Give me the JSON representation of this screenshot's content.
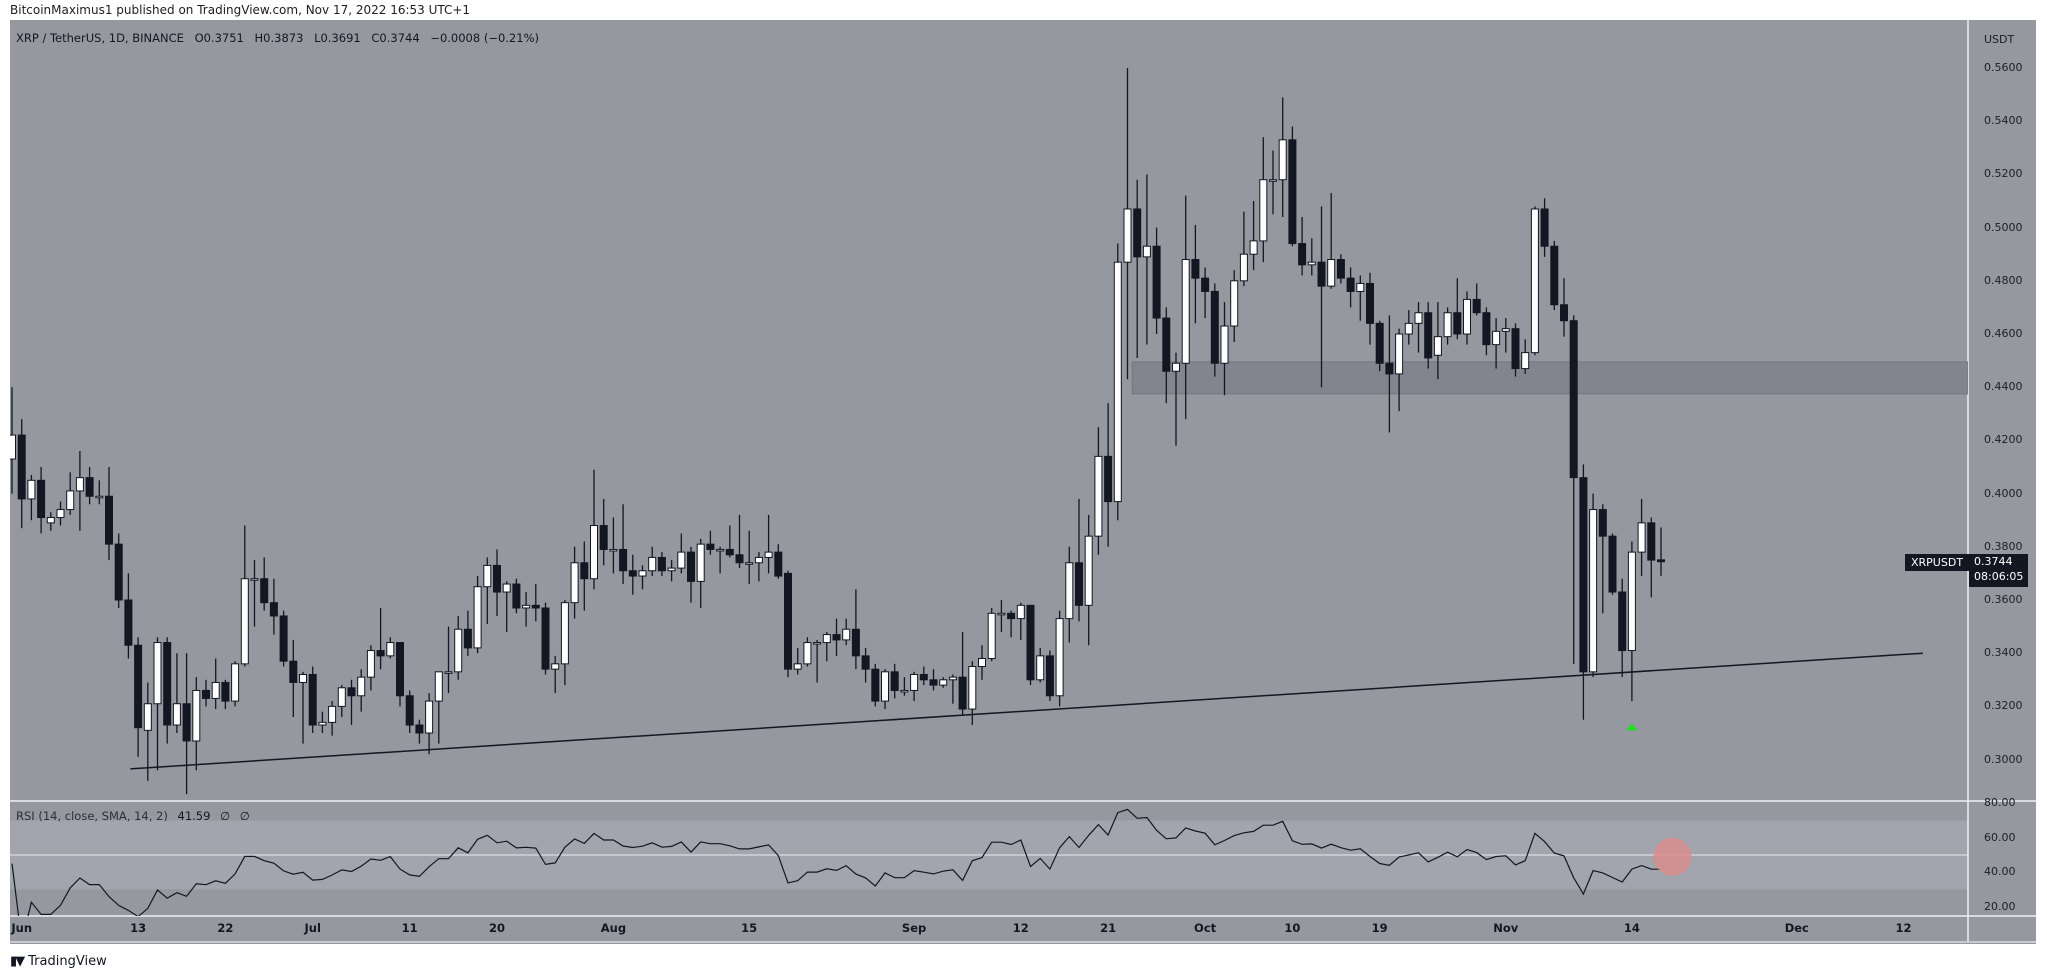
{
  "publisher_line": "BitcoinMaximus1 published on TradingView.com, Nov 17, 2022 16:53 UTC+1",
  "legend": {
    "symbol": "XRP / TetherUS, 1D, BINANCE",
    "open": "O0.3751",
    "high": "H0.3873",
    "low": "L0.3691",
    "close": "C0.3744",
    "change": "−0.0008 (−0.21%)"
  },
  "rsi_legend": {
    "label": "RSI (14, close, SMA, 14, 2)",
    "value": "41.59",
    "extra1": "∅",
    "extra2": "∅"
  },
  "price_axis": {
    "currency": "USDT",
    "labels": [
      "0.5600",
      "0.5400",
      "0.5200",
      "0.5000",
      "0.4800",
      "0.4600",
      "0.4400",
      "0.4200",
      "0.4000",
      "0.3800",
      "0.3600",
      "0.3400",
      "0.3200",
      "0.3000"
    ]
  },
  "rsi_axis": {
    "labels": [
      "80.00",
      "60.00",
      "40.00",
      "20.00"
    ]
  },
  "last_price": {
    "symbol": "XRPUSDT",
    "price": "0.3744",
    "countdown": "08:06:05"
  },
  "footer": {
    "brand": "TradingView"
  },
  "colors": {
    "background": "#95989f",
    "bear_body": "#131722",
    "bull_body": "#ffffff",
    "zone": "#82858d",
    "rsi_band": "#a2a5ad",
    "marker_up": "#22dd22",
    "rsi_highlight": "#d98c8c"
  },
  "chart_data": {
    "type": "candlestick",
    "title": "XRP / TetherUS, 1D, BINANCE",
    "ylabel": "USDT",
    "ylim": [
      0.2845,
      0.5728
    ],
    "yticks": [
      0.56,
      0.54,
      0.52,
      0.5,
      0.48,
      0.46,
      0.44,
      0.42,
      0.4,
      0.38,
      0.36,
      0.34,
      0.32,
      0.3
    ],
    "x_start_date": "2022-05-31",
    "x_ticks": [
      {
        "label": "Jun",
        "day": 1
      },
      {
        "label": "13",
        "day": 13
      },
      {
        "label": "22",
        "day": 22
      },
      {
        "label": "Jul",
        "day": 31
      },
      {
        "label": "11",
        "day": 41
      },
      {
        "label": "20",
        "day": 50
      },
      {
        "label": "Aug",
        "day": 62
      },
      {
        "label": "15",
        "day": 76
      },
      {
        "label": "Sep",
        "day": 93
      },
      {
        "label": "12",
        "day": 104
      },
      {
        "label": "21",
        "day": 113
      },
      {
        "label": "Oct",
        "day": 123
      },
      {
        "label": "10",
        "day": 132
      },
      {
        "label": "19",
        "day": 141
      },
      {
        "label": "Nov",
        "day": 154
      },
      {
        "label": "14",
        "day": 167
      },
      {
        "label": "Dec",
        "day": 184
      },
      {
        "label": "12",
        "day": 195
      }
    ],
    "candles_ohlc": [
      [
        0.413,
        0.44,
        0.4,
        0.422
      ],
      [
        0.422,
        0.428,
        0.387,
        0.398
      ],
      [
        0.398,
        0.407,
        0.39,
        0.405
      ],
      [
        0.405,
        0.41,
        0.385,
        0.391
      ],
      [
        0.389,
        0.393,
        0.386,
        0.391
      ],
      [
        0.391,
        0.397,
        0.388,
        0.394
      ],
      [
        0.394,
        0.408,
        0.392,
        0.401
      ],
      [
        0.401,
        0.416,
        0.386,
        0.406
      ],
      [
        0.406,
        0.41,
        0.396,
        0.399
      ],
      [
        0.399,
        0.405,
        0.396,
        0.399
      ],
      [
        0.399,
        0.41,
        0.375,
        0.381
      ],
      [
        0.381,
        0.385,
        0.357,
        0.36
      ],
      [
        0.36,
        0.37,
        0.338,
        0.343
      ],
      [
        0.343,
        0.346,
        0.301,
        0.312
      ],
      [
        0.311,
        0.329,
        0.292,
        0.321
      ],
      [
        0.321,
        0.346,
        0.296,
        0.344
      ],
      [
        0.344,
        0.346,
        0.306,
        0.313
      ],
      [
        0.313,
        0.34,
        0.31,
        0.321
      ],
      [
        0.321,
        0.34,
        0.287,
        0.307
      ],
      [
        0.307,
        0.331,
        0.296,
        0.326
      ],
      [
        0.326,
        0.33,
        0.32,
        0.323
      ],
      [
        0.323,
        0.338,
        0.319,
        0.329
      ],
      [
        0.329,
        0.33,
        0.319,
        0.322
      ],
      [
        0.322,
        0.337,
        0.32,
        0.336
      ],
      [
        0.336,
        0.388,
        0.335,
        0.368
      ],
      [
        0.368,
        0.375,
        0.35,
        0.368
      ],
      [
        0.368,
        0.376,
        0.356,
        0.359
      ],
      [
        0.359,
        0.368,
        0.347,
        0.354
      ],
      [
        0.354,
        0.356,
        0.335,
        0.337
      ],
      [
        0.337,
        0.345,
        0.316,
        0.329
      ],
      [
        0.329,
        0.333,
        0.306,
        0.332
      ],
      [
        0.332,
        0.335,
        0.31,
        0.313
      ],
      [
        0.313,
        0.318,
        0.31,
        0.314
      ],
      [
        0.314,
        0.322,
        0.309,
        0.32
      ],
      [
        0.32,
        0.328,
        0.316,
        0.327
      ],
      [
        0.327,
        0.33,
        0.313,
        0.324
      ],
      [
        0.324,
        0.334,
        0.318,
        0.331
      ],
      [
        0.331,
        0.343,
        0.326,
        0.341
      ],
      [
        0.341,
        0.357,
        0.334,
        0.339
      ],
      [
        0.339,
        0.346,
        0.338,
        0.344
      ],
      [
        0.344,
        0.344,
        0.32,
        0.324
      ],
      [
        0.324,
        0.326,
        0.31,
        0.313
      ],
      [
        0.313,
        0.315,
        0.306,
        0.31
      ],
      [
        0.31,
        0.325,
        0.302,
        0.322
      ],
      [
        0.322,
        0.333,
        0.306,
        0.333
      ],
      [
        0.333,
        0.35,
        0.325,
        0.333
      ],
      [
        0.333,
        0.354,
        0.33,
        0.349
      ],
      [
        0.349,
        0.356,
        0.339,
        0.342
      ],
      [
        0.342,
        0.369,
        0.34,
        0.365
      ],
      [
        0.365,
        0.376,
        0.351,
        0.373
      ],
      [
        0.373,
        0.379,
        0.354,
        0.363
      ],
      [
        0.363,
        0.367,
        0.348,
        0.366
      ],
      [
        0.366,
        0.368,
        0.355,
        0.357
      ],
      [
        0.357,
        0.363,
        0.35,
        0.358
      ],
      [
        0.358,
        0.366,
        0.352,
        0.357
      ],
      [
        0.357,
        0.359,
        0.332,
        0.334
      ],
      [
        0.334,
        0.339,
        0.325,
        0.336
      ],
      [
        0.336,
        0.36,
        0.328,
        0.359
      ],
      [
        0.359,
        0.38,
        0.353,
        0.374
      ],
      [
        0.374,
        0.382,
        0.356,
        0.368
      ],
      [
        0.368,
        0.409,
        0.364,
        0.388
      ],
      [
        0.388,
        0.398,
        0.373,
        0.379
      ],
      [
        0.379,
        0.391,
        0.37,
        0.379
      ],
      [
        0.379,
        0.396,
        0.366,
        0.371
      ],
      [
        0.371,
        0.377,
        0.362,
        0.369
      ],
      [
        0.369,
        0.373,
        0.364,
        0.371
      ],
      [
        0.371,
        0.38,
        0.369,
        0.376
      ],
      [
        0.376,
        0.378,
        0.369,
        0.371
      ],
      [
        0.371,
        0.375,
        0.367,
        0.372
      ],
      [
        0.372,
        0.385,
        0.37,
        0.378
      ],
      [
        0.378,
        0.38,
        0.359,
        0.367
      ],
      [
        0.367,
        0.383,
        0.357,
        0.381
      ],
      [
        0.381,
        0.386,
        0.377,
        0.379
      ],
      [
        0.379,
        0.38,
        0.37,
        0.379
      ],
      [
        0.379,
        0.388,
        0.376,
        0.377
      ],
      [
        0.377,
        0.392,
        0.372,
        0.374
      ],
      [
        0.374,
        0.386,
        0.366,
        0.374
      ],
      [
        0.374,
        0.378,
        0.367,
        0.376
      ],
      [
        0.376,
        0.392,
        0.37,
        0.378
      ],
      [
        0.378,
        0.381,
        0.368,
        0.369
      ],
      [
        0.37,
        0.371,
        0.331,
        0.334
      ],
      [
        0.334,
        0.342,
        0.332,
        0.336
      ],
      [
        0.336,
        0.346,
        0.335,
        0.344
      ],
      [
        0.344,
        0.345,
        0.329,
        0.344
      ],
      [
        0.344,
        0.348,
        0.337,
        0.347
      ],
      [
        0.347,
        0.353,
        0.339,
        0.345
      ],
      [
        0.345,
        0.353,
        0.343,
        0.349
      ],
      [
        0.349,
        0.364,
        0.334,
        0.339
      ],
      [
        0.339,
        0.342,
        0.329,
        0.334
      ],
      [
        0.334,
        0.336,
        0.32,
        0.322
      ],
      [
        0.322,
        0.334,
        0.319,
        0.333
      ],
      [
        0.333,
        0.336,
        0.323,
        0.326
      ],
      [
        0.326,
        0.331,
        0.324,
        0.326
      ],
      [
        0.326,
        0.333,
        0.322,
        0.332
      ],
      [
        0.332,
        0.335,
        0.328,
        0.33
      ],
      [
        0.33,
        0.334,
        0.326,
        0.328
      ],
      [
        0.328,
        0.331,
        0.327,
        0.33
      ],
      [
        0.33,
        0.332,
        0.321,
        0.331
      ],
      [
        0.331,
        0.348,
        0.317,
        0.319
      ],
      [
        0.319,
        0.337,
        0.313,
        0.335
      ],
      [
        0.335,
        0.343,
        0.33,
        0.338
      ],
      [
        0.338,
        0.357,
        0.337,
        0.355
      ],
      [
        0.355,
        0.36,
        0.348,
        0.355
      ],
      [
        0.355,
        0.356,
        0.346,
        0.353
      ],
      [
        0.353,
        0.359,
        0.345,
        0.358
      ],
      [
        0.358,
        0.358,
        0.328,
        0.33
      ],
      [
        0.33,
        0.342,
        0.329,
        0.339
      ],
      [
        0.339,
        0.341,
        0.322,
        0.324
      ],
      [
        0.324,
        0.356,
        0.32,
        0.353
      ],
      [
        0.353,
        0.38,
        0.344,
        0.374
      ],
      [
        0.374,
        0.398,
        0.352,
        0.358
      ],
      [
        0.358,
        0.392,
        0.343,
        0.384
      ],
      [
        0.384,
        0.425,
        0.377,
        0.414
      ],
      [
        0.414,
        0.434,
        0.38,
        0.397
      ],
      [
        0.397,
        0.494,
        0.39,
        0.487
      ],
      [
        0.487,
        0.56,
        0.443,
        0.507
      ],
      [
        0.507,
        0.518,
        0.451,
        0.489
      ],
      [
        0.489,
        0.52,
        0.456,
        0.493
      ],
      [
        0.493,
        0.5,
        0.46,
        0.466
      ],
      [
        0.466,
        0.47,
        0.434,
        0.446
      ],
      [
        0.446,
        0.453,
        0.418,
        0.449
      ],
      [
        0.449,
        0.512,
        0.428,
        0.488
      ],
      [
        0.488,
        0.501,
        0.464,
        0.481
      ],
      [
        0.481,
        0.485,
        0.466,
        0.476
      ],
      [
        0.476,
        0.479,
        0.444,
        0.449
      ],
      [
        0.449,
        0.472,
        0.437,
        0.463
      ],
      [
        0.463,
        0.484,
        0.457,
        0.48
      ],
      [
        0.48,
        0.506,
        0.478,
        0.49
      ],
      [
        0.49,
        0.51,
        0.484,
        0.495
      ],
      [
        0.495,
        0.534,
        0.487,
        0.518
      ],
      [
        0.518,
        0.529,
        0.505,
        0.518
      ],
      [
        0.518,
        0.549,
        0.504,
        0.533
      ],
      [
        0.533,
        0.538,
        0.493,
        0.494
      ],
      [
        0.494,
        0.504,
        0.482,
        0.486
      ],
      [
        0.486,
        0.496,
        0.482,
        0.487
      ],
      [
        0.487,
        0.508,
        0.44,
        0.478
      ],
      [
        0.478,
        0.513,
        0.477,
        0.488
      ],
      [
        0.488,
        0.49,
        0.479,
        0.481
      ],
      [
        0.481,
        0.485,
        0.47,
        0.476
      ],
      [
        0.476,
        0.482,
        0.465,
        0.479
      ],
      [
        0.479,
        0.483,
        0.456,
        0.464
      ],
      [
        0.464,
        0.465,
        0.446,
        0.449
      ],
      [
        0.449,
        0.467,
        0.423,
        0.445
      ],
      [
        0.445,
        0.462,
        0.431,
        0.46
      ],
      [
        0.46,
        0.469,
        0.456,
        0.464
      ],
      [
        0.464,
        0.472,
        0.453,
        0.468
      ],
      [
        0.468,
        0.472,
        0.447,
        0.451
      ],
      [
        0.452,
        0.472,
        0.443,
        0.459
      ],
      [
        0.459,
        0.47,
        0.456,
        0.468
      ],
      [
        0.468,
        0.481,
        0.458,
        0.46
      ],
      [
        0.46,
        0.476,
        0.456,
        0.473
      ],
      [
        0.473,
        0.479,
        0.467,
        0.468
      ],
      [
        0.468,
        0.47,
        0.452,
        0.456
      ],
      [
        0.456,
        0.466,
        0.447,
        0.461
      ],
      [
        0.461,
        0.466,
        0.453,
        0.462
      ],
      [
        0.462,
        0.464,
        0.444,
        0.447
      ],
      [
        0.447,
        0.458,
        0.445,
        0.453
      ],
      [
        0.453,
        0.508,
        0.452,
        0.507
      ],
      [
        0.507,
        0.511,
        0.489,
        0.493
      ],
      [
        0.493,
        0.495,
        0.469,
        0.471
      ],
      [
        0.471,
        0.481,
        0.459,
        0.465
      ],
      [
        0.465,
        0.467,
        0.336,
        0.406
      ],
      [
        0.406,
        0.411,
        0.315,
        0.333
      ],
      [
        0.333,
        0.4,
        0.331,
        0.394
      ],
      [
        0.394,
        0.396,
        0.355,
        0.384
      ],
      [
        0.384,
        0.385,
        0.362,
        0.363
      ],
      [
        0.363,
        0.368,
        0.331,
        0.341
      ],
      [
        0.341,
        0.382,
        0.322,
        0.378
      ],
      [
        0.378,
        0.398,
        0.369,
        0.389
      ],
      [
        0.389,
        0.391,
        0.361,
        0.375
      ],
      [
        0.3751,
        0.3873,
        0.3691,
        0.3744
      ]
    ],
    "trendline": {
      "from": {
        "day": 12.2,
        "price": 0.2965
      },
      "to": {
        "day": 197,
        "price": 0.34
      }
    },
    "zone": {
      "from_day": 116,
      "price_low": 0.4375,
      "price_high": 0.4495
    },
    "markers": [
      {
        "type": "arrow-up",
        "day": 167,
        "price": 0.3125
      }
    ],
    "rsi": {
      "period": 14,
      "last_value": 41.59,
      "ylim": [
        14.5,
        81.5
      ],
      "yticks": [
        80,
        60,
        40,
        20
      ],
      "band": [
        30,
        70
      ],
      "midline": 50,
      "highlight": {
        "day": 171.2,
        "value": 49
      }
    }
  }
}
